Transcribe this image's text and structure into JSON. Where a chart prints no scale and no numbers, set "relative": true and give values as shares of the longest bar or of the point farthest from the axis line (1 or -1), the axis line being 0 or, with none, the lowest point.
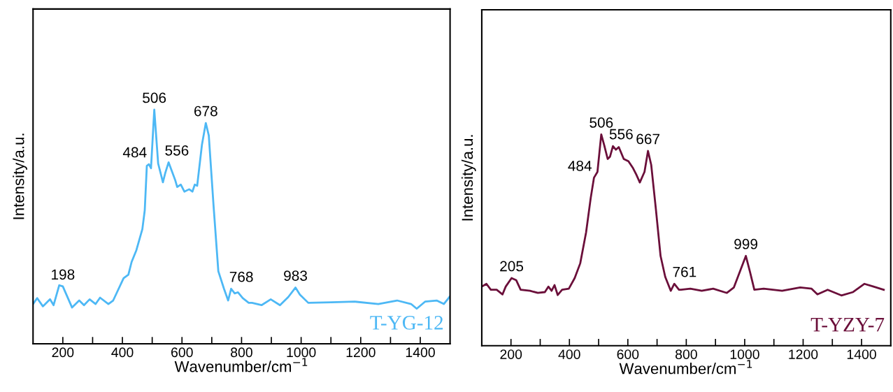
{
  "chart_data": [
    {
      "type": "line",
      "relative": true,
      "xlabel": "Wavenumber/cm$^{−1}$",
      "ylabel": "Intensity/a.u.",
      "xlim": [
        100,
        1500
      ],
      "xticks": [
        200,
        {
          "value": 300,
          "label": null
        },
        400,
        {
          "value": 500,
          "label": null
        },
        600,
        {
          "value": 700,
          "label": null
        },
        800,
        {
          "value": 900,
          "label": null
        },
        1000,
        {
          "value": 1100,
          "label": null
        },
        1200,
        {
          "value": 1300,
          "label": null
        },
        1400
      ],
      "tick_labels": "x",
      "grid": false,
      "legend": false,
      "series": [
        {
          "name": "T-YG-12",
          "color": "#4db8f5",
          "x": [
            100,
            114,
            133,
            157,
            169,
            188,
            200,
            212,
            231,
            255,
            271,
            290,
            310,
            325,
            353,
            369,
            380,
            404,
            420,
            431,
            447,
            467,
            475,
            482,
            489,
            496,
            507,
            520,
            536,
            544,
            555,
            577,
            584,
            596,
            608,
            624,
            635,
            643,
            651,
            667,
            680,
            690,
            706,
            722,
            741,
            755,
            765,
            777,
            788,
            804,
            824,
            835,
            867,
            898,
            929,
            957,
            981,
            996,
            1024,
            1101,
            1180,
            1259,
            1322,
            1369,
            1388,
            1416,
            1455,
            1479,
            1498
          ],
          "values": [
            0.17,
            0.195,
            0.16,
            0.19,
            0.165,
            0.25,
            0.245,
            0.21,
            0.155,
            0.185,
            0.165,
            0.19,
            0.17,
            0.197,
            0.17,
            0.185,
            0.215,
            0.28,
            0.295,
            0.35,
            0.4,
            0.49,
            0.57,
            0.76,
            0.767,
            0.75,
            1.0,
            0.77,
            0.69,
            0.73,
            0.775,
            0.7,
            0.67,
            0.68,
            0.65,
            0.66,
            0.65,
            0.68,
            0.675,
            0.85,
            0.943,
            0.89,
            0.59,
            0.31,
            0.235,
            0.185,
            0.235,
            0.215,
            0.22,
            0.195,
            0.175,
            0.175,
            0.165,
            0.19,
            0.165,
            0.2,
            0.24,
            0.21,
            0.175,
            0.177,
            0.18,
            0.17,
            0.185,
            0.17,
            0.15,
            0.18,
            0.185,
            0.17,
            0.2
          ]
        }
      ],
      "annotations": [
        {
          "text": "198",
          "x": 200,
          "y": 0.245
        },
        {
          "text": "484",
          "x": 489,
          "y": 0.767
        },
        {
          "text": "506",
          "x": 507,
          "y": 1.0
        },
        {
          "text": "556",
          "x": 555,
          "y": 0.775
        },
        {
          "text": "678",
          "x": 680,
          "y": 0.943
        },
        {
          "text": "768",
          "x": 765,
          "y": 0.235
        },
        {
          "text": "983",
          "x": 981,
          "y": 0.24
        }
      ]
    },
    {
      "type": "line",
      "relative": true,
      "xlabel": "Wavenumber/cm$^{−1}$",
      "ylabel": "Intensity/a.u.",
      "xlim": [
        100,
        1500
      ],
      "xticks": [
        200,
        {
          "value": 300,
          "label": null
        },
        400,
        {
          "value": 500,
          "label": null
        },
        600,
        {
          "value": 700,
          "label": null
        },
        800,
        {
          "value": 900,
          "label": null
        },
        1000,
        {
          "value": 1100,
          "label": null
        },
        1200,
        {
          "value": 1300,
          "label": null
        },
        1400
      ],
      "tick_labels": "x",
      "grid": false,
      "legend": false,
      "series": [
        {
          "name": "T-YZY-7",
          "color": "#6b0f3a",
          "x": [
            100,
            116,
            131,
            151,
            171,
            182,
            202,
            218,
            233,
            265,
            292,
            316,
            328,
            339,
            349,
            360,
            375,
            398,
            418,
            437,
            457,
            473,
            484,
            496,
            509,
            519,
            531,
            539,
            549,
            559,
            569,
            586,
            602,
            618,
            629,
            641,
            657,
            669,
            680,
            696,
            712,
            728,
            747,
            759,
            775,
            782,
            814,
            853,
            892,
            939,
            963,
            986,
            1004,
            1018,
            1033,
            1065,
            1128,
            1190,
            1229,
            1249,
            1284,
            1331,
            1371,
            1410,
            1441,
            1476
          ],
          "values": [
            0.28,
            0.293,
            0.265,
            0.265,
            0.243,
            0.28,
            0.32,
            0.31,
            0.265,
            0.26,
            0.25,
            0.254,
            0.28,
            0.26,
            0.287,
            0.24,
            0.265,
            0.27,
            0.32,
            0.39,
            0.536,
            0.7,
            0.795,
            0.823,
            1.0,
            0.95,
            0.884,
            0.895,
            0.945,
            0.928,
            0.94,
            0.884,
            0.873,
            0.84,
            0.81,
            0.773,
            0.823,
            0.922,
            0.856,
            0.646,
            0.425,
            0.326,
            0.26,
            0.293,
            0.265,
            0.265,
            0.27,
            0.26,
            0.27,
            0.25,
            0.276,
            0.36,
            0.425,
            0.35,
            0.265,
            0.27,
            0.26,
            0.276,
            0.27,
            0.243,
            0.265,
            0.238,
            0.254,
            0.293,
            0.28,
            0.265
          ]
        }
      ],
      "annotations": [
        {
          "text": "205",
          "x": 202,
          "y": 0.32
        },
        {
          "text": "484",
          "x": 484,
          "y": 0.795
        },
        {
          "text": "506",
          "x": 509,
          "y": 1.0
        },
        {
          "text": "556",
          "x": 549,
          "y": 0.945
        },
        {
          "text": "667",
          "x": 669,
          "y": 0.922
        },
        {
          "text": "761",
          "x": 759,
          "y": 0.293
        },
        {
          "text": "999",
          "x": 1004,
          "y": 0.425
        }
      ]
    }
  ]
}
